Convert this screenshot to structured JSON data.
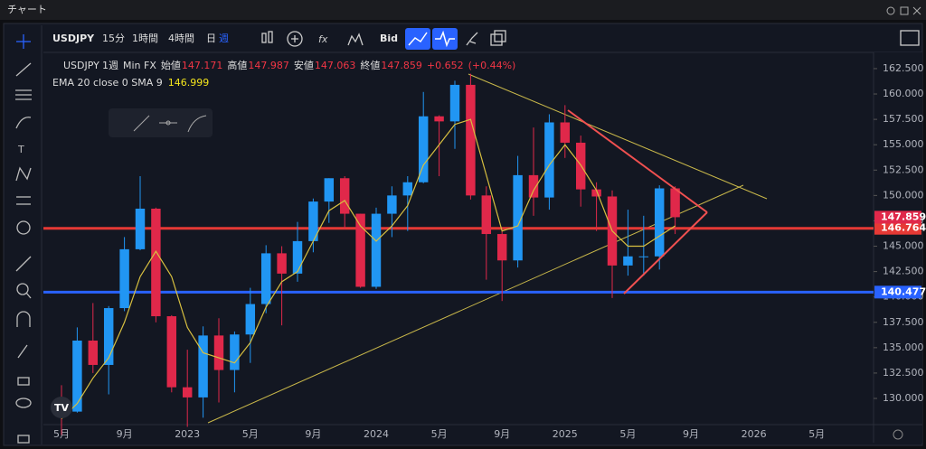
{
  "window": {
    "title": "チャート"
  },
  "toolbar": {
    "symbol": "USDJPY",
    "intervals": [
      "15分",
      "1時間",
      "4時間",
      "日",
      "週"
    ],
    "price_source": "Bid"
  },
  "legend": {
    "symbol": "USDJPY",
    "interval": "1週",
    "source": "Min FX",
    "open_label": "始値",
    "open": "147.171",
    "high_label": "高値",
    "high": "147.987",
    "low_label": "安値",
    "low": "147.063",
    "close_label": "終値",
    "close": "147.859",
    "change": "+0.652",
    "change_pct": "(+0.44%)",
    "indicator": "EMA 20 close 0 SMA 9",
    "indicator_value": "146.999"
  },
  "chart_data": {
    "type": "candlestick",
    "categories": [
      "5月",
      null,
      null,
      null,
      "9月",
      null,
      null,
      null,
      "2023",
      null,
      null,
      null,
      "5月",
      null,
      null,
      null,
      "9月",
      null,
      null,
      null,
      "2024",
      null,
      null,
      null,
      "5月",
      null,
      null,
      null,
      "9月",
      null,
      null,
      null,
      "2025",
      null,
      null,
      null,
      "5月",
      null,
      null,
      null,
      "9月",
      null,
      null,
      null,
      "2026",
      null,
      null,
      null,
      "5月",
      null
    ],
    "open": [
      129.7,
      128.7,
      135.7,
      133.3,
      138.9,
      144.7,
      148.7,
      138.1,
      131.1,
      130.1,
      136.2,
      132.8,
      136.3,
      139.3,
      144.3,
      142.3,
      145.5,
      149.4,
      151.7,
      148.2,
      141.0,
      148.2,
      150.0,
      151.3,
      157.8,
      157.3,
      160.9,
      150.0,
      146.2,
      143.6,
      152.0,
      149.8,
      157.2,
      155.2,
      150.6,
      149.9,
      143.1,
      144.0,
      144.0,
      150.7,
      null,
      null,
      null,
      null,
      null,
      null,
      null,
      null,
      null,
      null
    ],
    "high": [
      131.3,
      137.0,
      139.4,
      139.1,
      145.9,
      151.9,
      148.8,
      138.2,
      134.8,
      137.1,
      137.9,
      136.6,
      140.9,
      145.1,
      145.0,
      147.4,
      149.7,
      151.7,
      151.9,
      148.2,
      148.8,
      150.9,
      151.9,
      160.2,
      157.9,
      161.3,
      162.0,
      150.9,
      146.5,
      153.9,
      156.7,
      158.0,
      158.9,
      155.9,
      151.3,
      150.5,
      148.6,
      148.0,
      151.0,
      150.9,
      null,
      null,
      null,
      null,
      null,
      null,
      null,
      null,
      null,
      null
    ],
    "low": [
      126.4,
      128.6,
      132.5,
      130.4,
      138.6,
      144.6,
      137.5,
      130.6,
      127.2,
      128.1,
      129.6,
      130.6,
      133.5,
      138.4,
      137.2,
      141.5,
      144.4,
      147.3,
      146.7,
      140.9,
      140.8,
      145.9,
      146.5,
      151.2,
      151.9,
      154.6,
      149.6,
      141.7,
      139.6,
      142.9,
      148.0,
      148.6,
      153.7,
      148.9,
      146.5,
      139.9,
      142.1,
      142.1,
      142.7,
      146.2,
      null,
      null,
      null,
      null,
      null,
      null,
      null,
      null,
      null,
      null
    ],
    "close": [
      128.7,
      135.7,
      133.3,
      138.9,
      144.7,
      148.7,
      138.1,
      131.1,
      130.1,
      136.2,
      132.8,
      136.3,
      139.3,
      144.3,
      142.3,
      145.5,
      149.4,
      151.7,
      148.2,
      141.0,
      148.2,
      150.0,
      151.3,
      157.8,
      157.3,
      160.9,
      150.0,
      146.2,
      143.6,
      152.0,
      149.8,
      157.2,
      155.2,
      150.6,
      149.9,
      143.1,
      144.0,
      144.0,
      150.7,
      147.859,
      null,
      null,
      null,
      null,
      null,
      null,
      null,
      null,
      null,
      null
    ],
    "ema": [
      128.0,
      129.5,
      132.0,
      134.0,
      137.5,
      142.0,
      144.5,
      142.0,
      137.0,
      134.5,
      134.0,
      133.5,
      135.5,
      139.0,
      141.5,
      142.5,
      145.5,
      148.5,
      149.5,
      147.0,
      145.5,
      147.0,
      149.0,
      153.0,
      155.0,
      157.0,
      157.5,
      152.0,
      146.5,
      147.0,
      150.5,
      153.0,
      155.0,
      153.0,
      150.5,
      146.5,
      145.0,
      145.0,
      146.0,
      147.0,
      null,
      null,
      null,
      null,
      null,
      null,
      null,
      null,
      null,
      null
    ],
    "up_color": "#2196f3",
    "down_color": "#e0284a",
    "ema_color": "#d8c040",
    "ylim": [
      127.42,
      163.92
    ],
    "yticks": [
      {
        "value": 130,
        "label": "130.000"
      },
      {
        "value": 132.5,
        "label": "132.500"
      },
      {
        "value": 135,
        "label": "135.000"
      },
      {
        "value": 137.5,
        "label": "137.500"
      },
      {
        "value": 140,
        "label": "140.000"
      },
      {
        "value": 142.5,
        "label": "142.500"
      },
      {
        "value": 145,
        "label": "145.000"
      },
      {
        "value": 147.5,
        "label": "147.500"
      },
      {
        "value": 150,
        "label": "150.000"
      },
      {
        "value": 152.5,
        "label": "152.500"
      },
      {
        "value": 155,
        "label": "155.000"
      },
      {
        "value": 157.5,
        "label": "157.500"
      },
      {
        "value": 160,
        "label": "160.000"
      },
      {
        "value": 162.5,
        "label": "162.500"
      }
    ],
    "levels": [
      {
        "value": 146.764,
        "label": "146.764",
        "color": "#e53935"
      },
      {
        "value": 140.477,
        "label": "140.477",
        "color": "#2962ff"
      }
    ],
    "last_price": {
      "value": 147.859,
      "label": "147.859",
      "color": "#e0284a"
    }
  }
}
